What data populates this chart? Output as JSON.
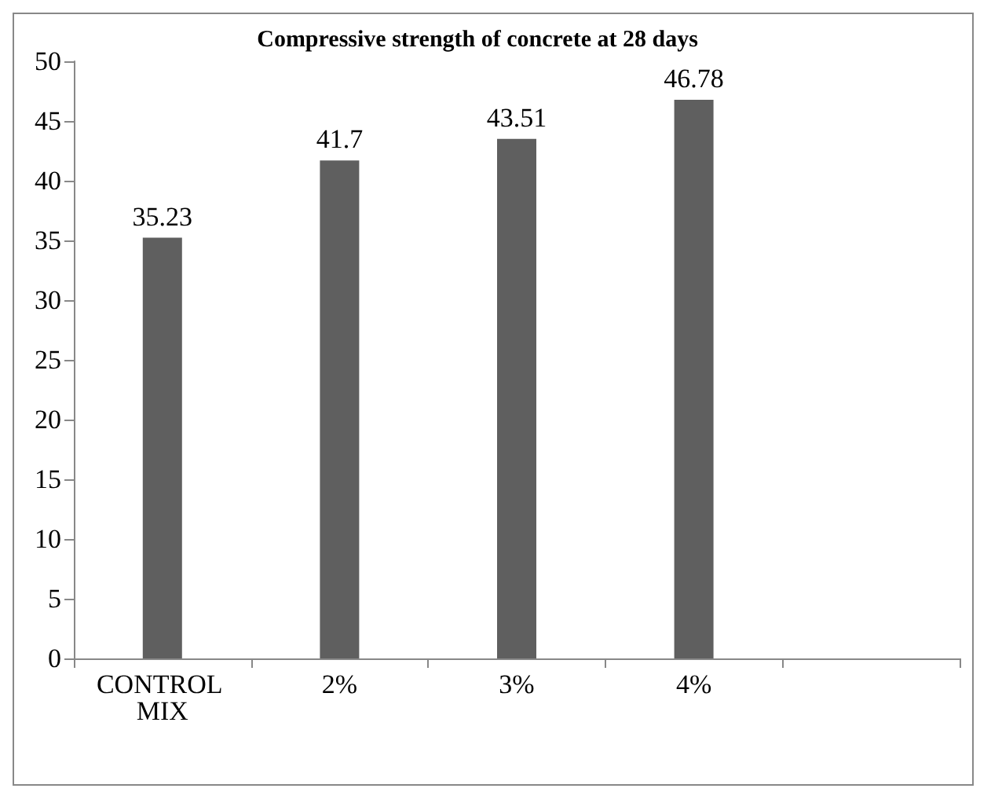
{
  "chart_data": {
    "type": "bar",
    "title": "Compressive strength of concrete at 28 days",
    "categories": [
      "CONTROL MIX",
      "2%",
      "3%",
      "4%",
      null
    ],
    "values": [
      35.23,
      41.7,
      43.51,
      46.78,
      null
    ],
    "color": "#5f5f5f",
    "ylim": [
      0,
      50
    ],
    "yticks": [
      0,
      5,
      10,
      15,
      20,
      25,
      30,
      35,
      40,
      45,
      50
    ],
    "grid": false,
    "data_labels": true
  }
}
